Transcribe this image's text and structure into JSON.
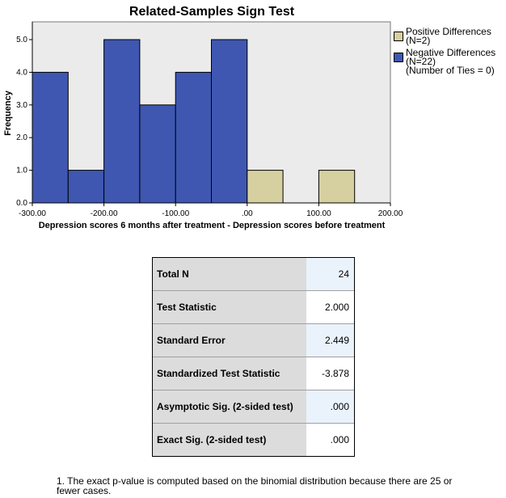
{
  "chart_data": {
    "type": "bar",
    "title": "Related-Samples Sign Test",
    "xlabel": "Depression scores 6 months after treatment - Depression scores before treatment",
    "ylabel": "Frequency",
    "xlim": [
      -300,
      200
    ],
    "ylim": [
      0,
      5.5
    ],
    "x_ticks": [
      "-300.00",
      "-200.00",
      "-100.00",
      ".00",
      "100.00",
      "200.00"
    ],
    "y_ticks": [
      "0.0",
      "1.0",
      "2.0",
      "3.0",
      "4.0",
      "5.0"
    ],
    "bin_width": 50,
    "series": [
      {
        "name": "Negative Differences",
        "color": "#3f57b1",
        "bins": [
          {
            "start": -300,
            "end": -250,
            "count": 4
          },
          {
            "start": -250,
            "end": -200,
            "count": 1
          },
          {
            "start": -200,
            "end": -150,
            "count": 5
          },
          {
            "start": -150,
            "end": -100,
            "count": 3
          },
          {
            "start": -100,
            "end": -50,
            "count": 4
          },
          {
            "start": -50,
            "end": 0,
            "count": 5
          }
        ]
      },
      {
        "name": "Positive Differences",
        "color": "#d6cf9f",
        "bins": [
          {
            "start": 0,
            "end": 50,
            "count": 1
          },
          {
            "start": 100,
            "end": 150,
            "count": 1
          }
        ]
      }
    ],
    "plot_background": "#ebebeb"
  },
  "legend": {
    "positive": {
      "label": "Positive Differences",
      "sub": "(N=2)",
      "color": "#d6cf9f"
    },
    "negative": {
      "label": "Negative Differences",
      "sub": "(N=22)",
      "color": "#3f57b1"
    },
    "ties": "(Number of Ties = 0)"
  },
  "table": {
    "rows": [
      {
        "label": "Total N",
        "value": "24"
      },
      {
        "label": "Test Statistic",
        "value": "2.000"
      },
      {
        "label": "Standard Error",
        "value": "2.449"
      },
      {
        "label": "Standardized Test Statistic",
        "value": "-3.878"
      },
      {
        "label": "Asymptotic Sig. (2-sided test)",
        "value": ".000"
      },
      {
        "label": "Exact Sig. (2-sided test)",
        "value": ".000"
      }
    ]
  },
  "footnote": "1.  The exact p-value is computed based on the binomial distribution because there are 25 or fewer cases."
}
